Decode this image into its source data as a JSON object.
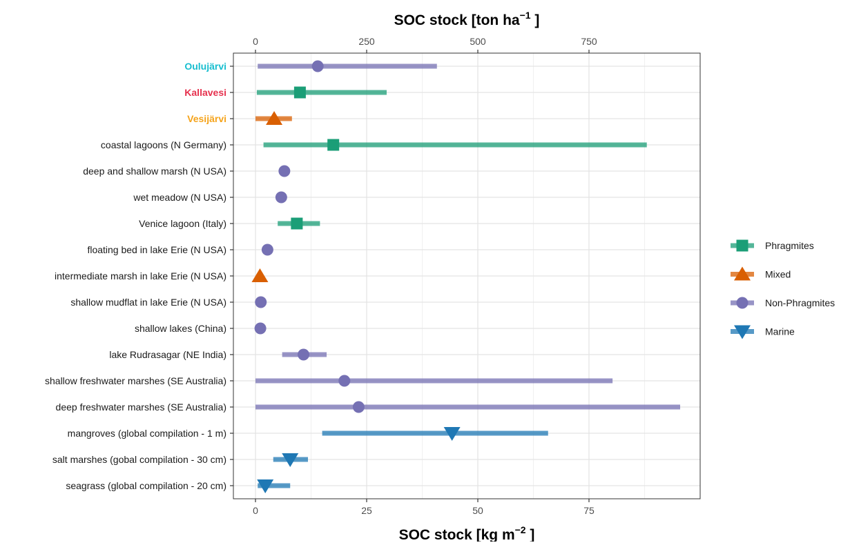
{
  "chart_data": {
    "type": "range-dot",
    "title_top": "SOC stock [ton ha",
    "title_top_sup": "−1",
    "title_top_end": " ]",
    "xlabel": "SOC stock [kg m",
    "xlabel_sup": "−2",
    "xlabel_end": " ]",
    "xlim": [
      0,
      100
    ],
    "x_ticks_bottom": [
      0,
      25,
      50,
      75
    ],
    "x_ticks_top": [
      0,
      250,
      500,
      750
    ],
    "grid": true,
    "legend_position": "right",
    "series": [
      {
        "name": "Phragmites",
        "color": "#1b9e77",
        "marker": "square"
      },
      {
        "name": "Mixed",
        "color": "#d95f02",
        "marker": "triangle-up"
      },
      {
        "name": "Non-Phragmites",
        "color": "#7570b3",
        "marker": "circle"
      },
      {
        "name": "Marine",
        "color": "#1f78b4",
        "marker": "triangle-down"
      }
    ],
    "sites": [
      {
        "label": "Oulujärvi",
        "group": "Non-Phragmites",
        "min": 0.5,
        "max": 40.8,
        "value": 14.0,
        "label_color": "#17becf",
        "label_bold": true
      },
      {
        "label": "Kallavesi",
        "group": "Phragmites",
        "min": 0.3,
        "max": 29.5,
        "value": 10.0,
        "label_color": "#e6314e",
        "label_bold": true
      },
      {
        "label": "Vesijärvi",
        "group": "Mixed",
        "min": 0.0,
        "max": 8.2,
        "value": 4.2,
        "label_color": "#f5a31a",
        "label_bold": true
      },
      {
        "label": "coastal lagoons (N Germany)",
        "group": "Phragmites",
        "min": 1.8,
        "max": 88.0,
        "value": 17.5
      },
      {
        "label": "deep and shallow marsh (N USA)",
        "group": "Non-Phragmites",
        "min": 5.6,
        "max": 7.4,
        "value": 6.5
      },
      {
        "label": "wet meadow (N USA)",
        "group": "Non-Phragmites",
        "min": 4.8,
        "max": 6.8,
        "value": 5.8
      },
      {
        "label": "Venice lagoon (Italy)",
        "group": "Phragmites",
        "min": 5.0,
        "max": 14.5,
        "value": 9.3
      },
      {
        "label": "floating bed in lake Erie (N USA)",
        "group": "Non-Phragmites",
        "min": 2.0,
        "max": 3.4,
        "value": 2.7
      },
      {
        "label": "intermediate marsh in lake Erie (N USA)",
        "group": "Mixed",
        "min": 0.5,
        "max": 1.5,
        "value": 1.0
      },
      {
        "label": "shallow mudflat in lake Erie (N USA)",
        "group": "Non-Phragmites",
        "min": 0.8,
        "max": 1.6,
        "value": 1.2
      },
      {
        "label": "shallow lakes (China)",
        "group": "Non-Phragmites",
        "min": 0.7,
        "max": 1.5,
        "value": 1.1
      },
      {
        "label": "lake Rudrasagar (NE India)",
        "group": "Non-Phragmites",
        "min": 6.0,
        "max": 16.0,
        "value": 10.8
      },
      {
        "label": "shallow freshwater marshes (SE Australia)",
        "group": "Non-Phragmites",
        "min": 0.0,
        "max": 80.3,
        "value": 20.0
      },
      {
        "label": "deep freshwater marshes (SE Australia)",
        "group": "Non-Phragmites",
        "min": 0.0,
        "max": 95.5,
        "value": 23.2
      },
      {
        "label": "mangroves (global compilation - 1 m)",
        "group": "Marine",
        "min": 15.0,
        "max": 65.8,
        "value": 44.2
      },
      {
        "label": "salt marshes (gobal compilation - 30 cm)",
        "group": "Marine",
        "min": 4.0,
        "max": 11.8,
        "value": 7.8
      },
      {
        "label": "seagrass (global compilation - 20 cm)",
        "group": "Marine",
        "min": 0.5,
        "max": 7.8,
        "value": 2.2
      }
    ]
  }
}
